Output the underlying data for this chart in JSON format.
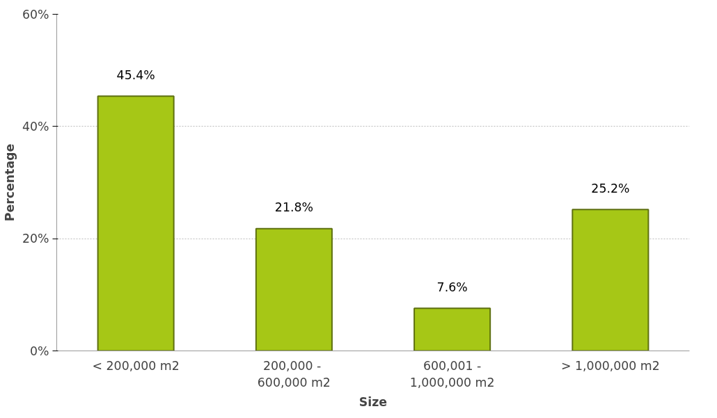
{
  "chart_data": {
    "type": "bar",
    "xlabel": "Size",
    "ylabel": "Percentage",
    "categories": [
      "< 200,000 m2",
      "200,000  -\n600,000 m2",
      "600,001 -\n1,000,000 m2",
      "> 1,000,000 m2"
    ],
    "series": [
      {
        "color": "#a6c716",
        "values": [
          45.4,
          21.8,
          7.6,
          25.2
        ]
      }
    ],
    "value_labels": [
      "45.4%",
      "21.8%",
      "7.6%",
      "25.2%"
    ],
    "ylim": [
      0,
      60
    ],
    "yticks": [
      {
        "value": 0,
        "label": "0%"
      },
      {
        "value": 20,
        "label": "20%"
      },
      {
        "value": 40,
        "label": "40%"
      },
      {
        "value": 60,
        "label": "60%"
      }
    ],
    "grid": "y"
  }
}
